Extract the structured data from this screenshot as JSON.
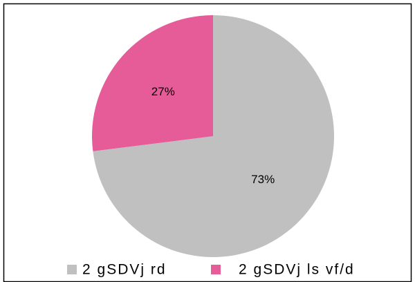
{
  "chart_data": {
    "type": "pie",
    "categories": [
      "2 gSDVj rd",
      "2 gSDVj ls vf/d"
    ],
    "values": [
      73,
      27
    ],
    "value_labels": [
      "73%",
      "27%"
    ],
    "colors": [
      "#c0c0c0",
      "#e65c98"
    ],
    "legend": "bottom"
  }
}
